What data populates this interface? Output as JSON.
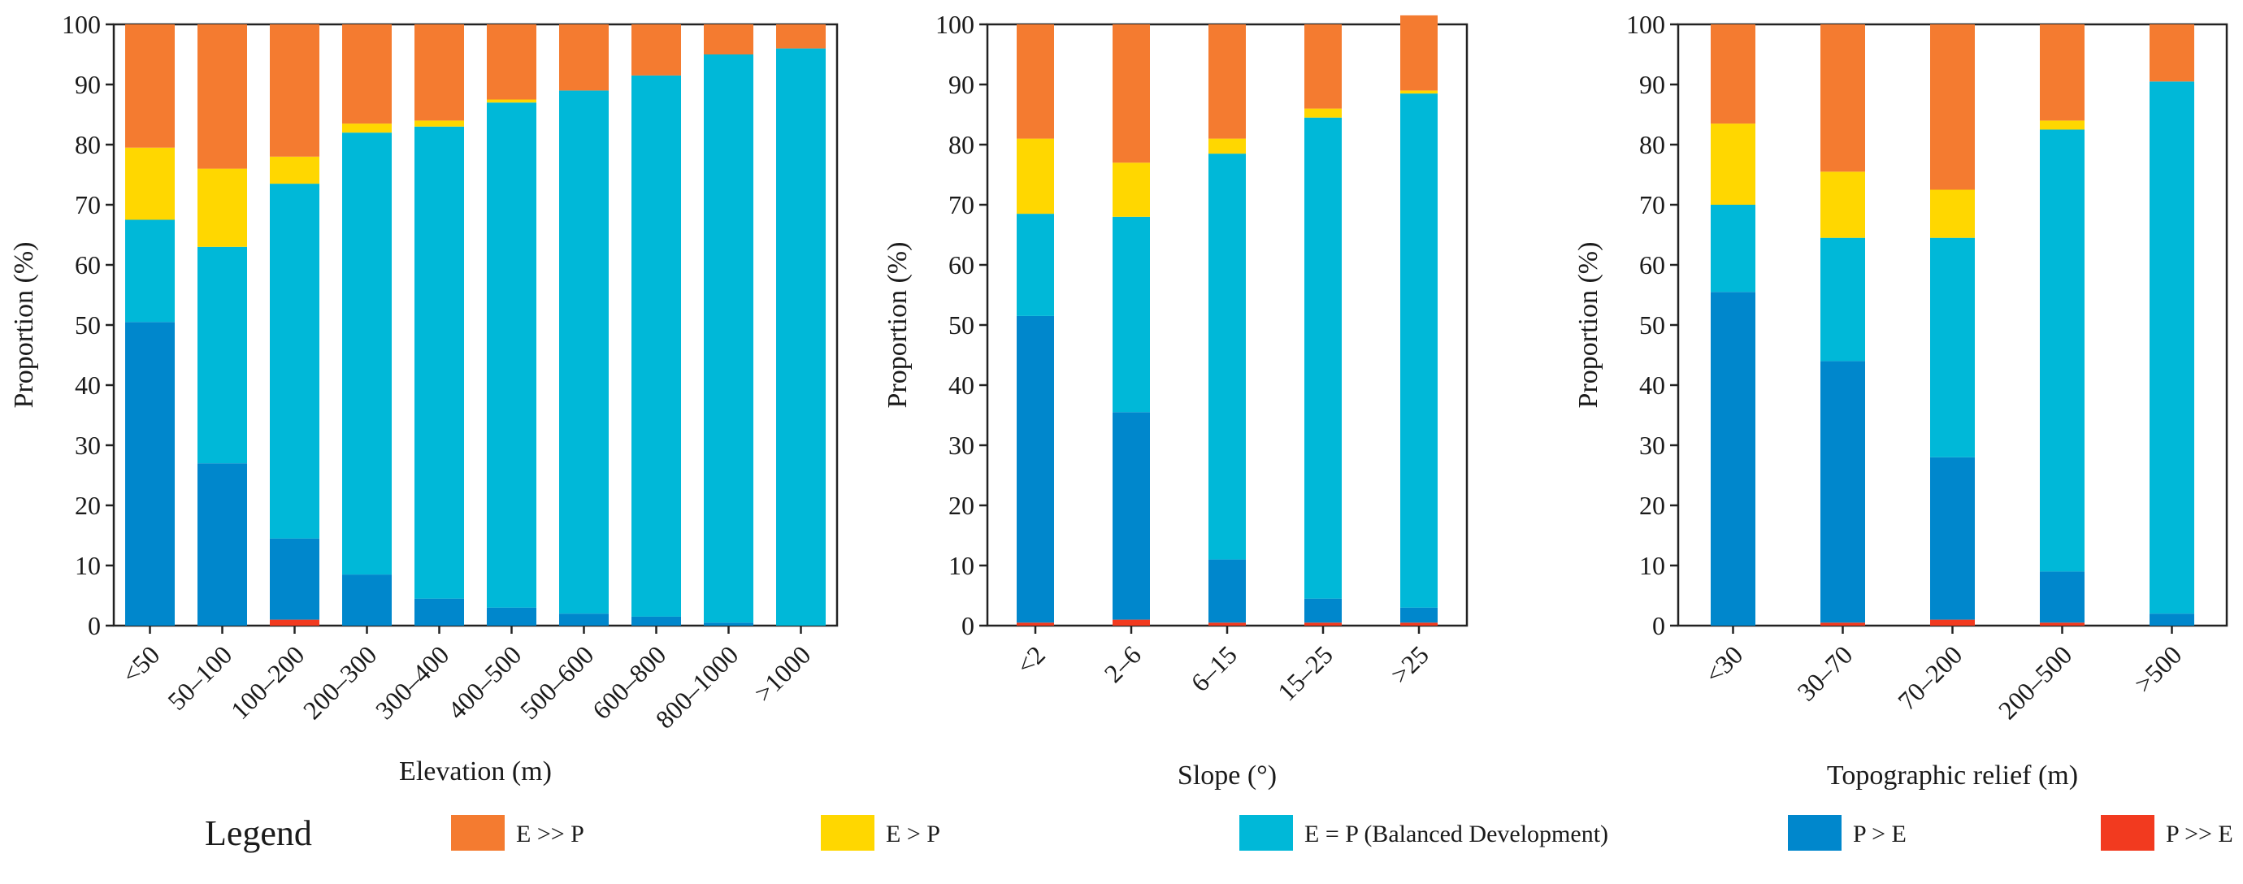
{
  "legend": {
    "title": "Legend",
    "items": [
      {
        "name": "E >> P",
        "color": "#f47b30"
      },
      {
        "name": "E > P",
        "color": "#ffd700"
      },
      {
        "name": "E = P (Balanced Development)",
        "color": "#00b8d8"
      },
      {
        "name": "P > E",
        "color": "#0087cc"
      },
      {
        "name": "P >> E",
        "color": "#f23a1f"
      }
    ]
  },
  "chart_data": [
    {
      "type": "bar",
      "stacked": true,
      "xlabel": "Elevation (m)",
      "ylabel": "Proportion (%)",
      "ylim": [
        0,
        100
      ],
      "yticks": [
        0,
        10,
        20,
        30,
        40,
        50,
        60,
        70,
        80,
        90,
        100
      ],
      "categories": [
        "<50",
        "50–100",
        "100–200",
        "200–300",
        "300–400",
        "400–500",
        "500–600",
        "600–800",
        "800–1000",
        ">1000"
      ],
      "series": [
        {
          "name": "P >> E",
          "values": [
            0,
            0,
            1,
            0,
            0,
            0,
            0,
            0,
            0,
            0
          ]
        },
        {
          "name": "P > E",
          "values": [
            50.5,
            27,
            13.5,
            8.5,
            4.5,
            3,
            2,
            1.5,
            0.5,
            0
          ]
        },
        {
          "name": "E = P (Balanced Development)",
          "values": [
            17,
            36,
            59,
            73.5,
            78.5,
            84,
            87,
            90,
            94.5,
            96
          ]
        },
        {
          "name": "E > P",
          "values": [
            12,
            13,
            4.5,
            1.5,
            1,
            0.5,
            0,
            0,
            0,
            0
          ]
        },
        {
          "name": "E >> P",
          "values": [
            20.5,
            24,
            22,
            16.5,
            16,
            12.5,
            11,
            8.5,
            5,
            4
          ]
        }
      ]
    },
    {
      "type": "bar",
      "stacked": true,
      "xlabel": "Slope (°)",
      "ylabel": "Proportion (%)",
      "ylim": [
        0,
        100
      ],
      "yticks": [
        0,
        10,
        20,
        30,
        40,
        50,
        60,
        70,
        80,
        90,
        100
      ],
      "categories": [
        "<2",
        "2–6",
        "6–15",
        "15–25",
        ">25"
      ],
      "series": [
        {
          "name": "P >> E",
          "values": [
            0.5,
            1,
            0.5,
            0.5,
            0.5
          ]
        },
        {
          "name": "P > E",
          "values": [
            51,
            34.5,
            10.5,
            4,
            2.5
          ]
        },
        {
          "name": "E = P (Balanced Development)",
          "values": [
            17,
            32.5,
            67.5,
            80,
            85.5
          ]
        },
        {
          "name": "E > P",
          "values": [
            12.5,
            9,
            2.5,
            1.5,
            0.5
          ]
        },
        {
          "name": "E >> P",
          "values": [
            19,
            23,
            19,
            14,
            12.5
          ]
        }
      ]
    },
    {
      "type": "bar",
      "stacked": true,
      "xlabel": "Topographic relief (m)",
      "ylabel": "Proportion (%)",
      "ylim": [
        0,
        100
      ],
      "yticks": [
        0,
        10,
        20,
        30,
        40,
        50,
        60,
        70,
        80,
        90,
        100
      ],
      "categories": [
        "<30",
        "30–70",
        "70–200",
        "200–500",
        ">500"
      ],
      "series": [
        {
          "name": "P >> E",
          "values": [
            0,
            0.5,
            1,
            0.5,
            0
          ]
        },
        {
          "name": "P > E",
          "values": [
            55.5,
            43.5,
            27,
            8.5,
            2
          ]
        },
        {
          "name": "E = P (Balanced Development)",
          "values": [
            14.5,
            20.5,
            36.5,
            73.5,
            88.5
          ]
        },
        {
          "name": "E > P",
          "values": [
            13.5,
            11,
            8,
            1.5,
            0
          ]
        },
        {
          "name": "E >> P",
          "values": [
            16.5,
            24.5,
            27.5,
            16,
            9.5
          ]
        }
      ]
    }
  ]
}
